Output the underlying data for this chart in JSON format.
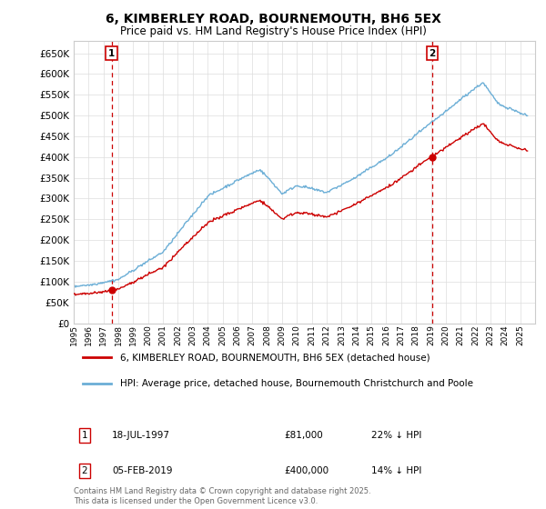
{
  "title": "6, KIMBERLEY ROAD, BOURNEMOUTH, BH6 5EX",
  "subtitle": "Price paid vs. HM Land Registry's House Price Index (HPI)",
  "legend_line1": "6, KIMBERLEY ROAD, BOURNEMOUTH, BH6 5EX (detached house)",
  "legend_line2": "HPI: Average price, detached house, Bournemouth Christchurch and Poole",
  "footer": "Contains HM Land Registry data © Crown copyright and database right 2025.\nThis data is licensed under the Open Government Licence v3.0.",
  "sale1_label": "1",
  "sale1_date": "18-JUL-1997",
  "sale1_price": "£81,000",
  "sale1_hpi": "22% ↓ HPI",
  "sale1_year": 1997.54,
  "sale1_value": 81000,
  "sale2_label": "2",
  "sale2_date": "05-FEB-2019",
  "sale2_price": "£400,000",
  "sale2_hpi": "14% ↓ HPI",
  "sale2_year": 2019.09,
  "sale2_value": 400000,
  "hpi_color": "#6baed6",
  "price_color": "#cc0000",
  "marker_color": "#cc0000",
  "vline_color": "#cc0000",
  "background_color": "#ffffff",
  "grid_color": "#dddddd",
  "ylim": [
    0,
    680000
  ],
  "ytick_step": 50000,
  "xlim_start": 1995,
  "xlim_end": 2026
}
